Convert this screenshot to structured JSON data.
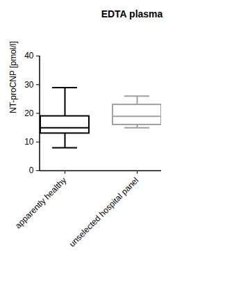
{
  "chart_data": {
    "type": "box",
    "title": "EDTA plasma",
    "y_label": "NT-proCNP [pmol/l]",
    "categories": [
      "apparently healthy",
      "unselected hospital panel"
    ],
    "min": [
      8,
      15
    ],
    "q1": [
      13,
      16
    ],
    "median": [
      15,
      19
    ],
    "q3": [
      19,
      23
    ],
    "max": [
      29,
      26
    ],
    "colors": [
      "#000000",
      "#a0a0a0"
    ],
    "ylim": [
      0,
      40
    ],
    "yticks": [
      0,
      10,
      20,
      30,
      40
    ],
    "grid": false
  }
}
